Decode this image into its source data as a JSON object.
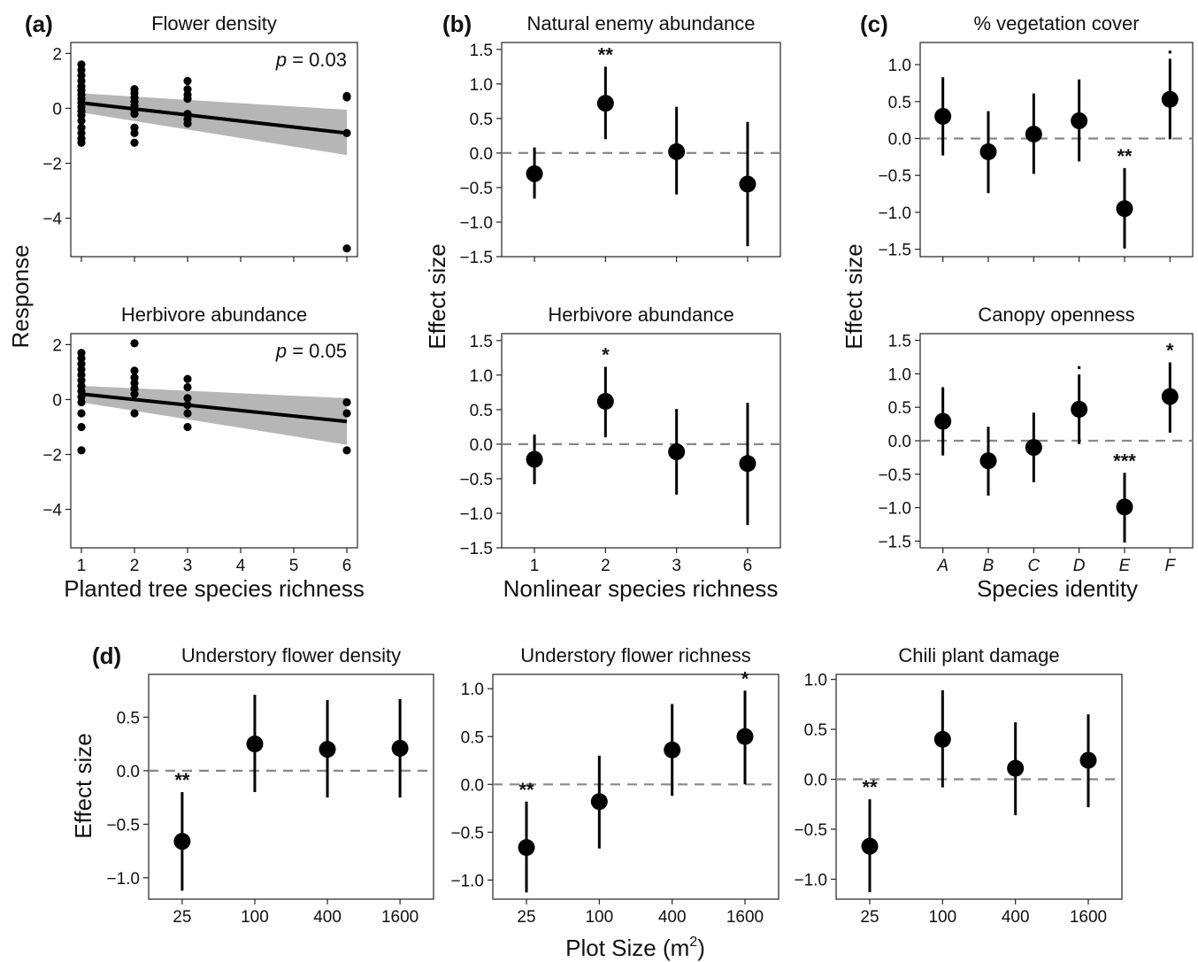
{
  "figure": {
    "shared_labels": {
      "a_ylabel": "Response",
      "a_xlabel": "Planted tree species richness",
      "b_ylabel": "Effect size",
      "b_xlabel": "Nonlinear species richness",
      "c_ylabel": "Effect size",
      "c_xlabel": "Species identity",
      "d_ylabel": "Effect size",
      "d_xlabel": "Plot Size (m",
      "d_xlabel_sup": "2",
      "d_xlabel_end": ")"
    },
    "panel_letters": {
      "a": "(a)",
      "b": "(b)",
      "c": "(c)",
      "d": "(d)"
    }
  },
  "chart_data": [
    {
      "id": "a1",
      "type": "scatter",
      "title": "Flower density",
      "annotation": "p = 0.03",
      "p_label": "p",
      "p_value": "= 0.03",
      "x_ticks": [
        1,
        2,
        3,
        4,
        5,
        6
      ],
      "y_ticks": [
        2,
        0,
        -2,
        -4
      ],
      "xlim": [
        0.8,
        6.2
      ],
      "ylim": [
        -5.4,
        2.4
      ],
      "points": [
        [
          1,
          1.6
        ],
        [
          1,
          1.4
        ],
        [
          1,
          1.2
        ],
        [
          1,
          1.0
        ],
        [
          1,
          0.8
        ],
        [
          1,
          0.65
        ],
        [
          1,
          0.5
        ],
        [
          1,
          0.35
        ],
        [
          1,
          0.2
        ],
        [
          1,
          0.05
        ],
        [
          1,
          -0.1
        ],
        [
          1,
          -0.25
        ],
        [
          1,
          -0.45
        ],
        [
          1,
          -0.7
        ],
        [
          1,
          -0.9
        ],
        [
          1,
          -1.1
        ],
        [
          1,
          -1.25
        ],
        [
          2,
          0.7
        ],
        [
          2,
          0.55
        ],
        [
          2,
          0.4
        ],
        [
          2,
          0.25
        ],
        [
          2,
          0.1
        ],
        [
          2,
          -0.05
        ],
        [
          2,
          -0.2
        ],
        [
          2,
          -0.7
        ],
        [
          2,
          -0.9
        ],
        [
          2,
          -1.25
        ],
        [
          3,
          1.0
        ],
        [
          3,
          0.7
        ],
        [
          3,
          0.5
        ],
        [
          3,
          0.35
        ],
        [
          3,
          -0.2
        ],
        [
          3,
          -0.4
        ],
        [
          3,
          -0.55
        ],
        [
          6,
          0.45
        ],
        [
          6,
          0.4
        ],
        [
          6,
          -0.9
        ],
        [
          6,
          -5.1
        ]
      ],
      "fit": {
        "x": [
          1,
          6
        ],
        "y": [
          0.2,
          -0.9
        ]
      },
      "band": {
        "x": [
          1,
          6
        ],
        "lower": [
          -0.15,
          -1.7
        ],
        "upper": [
          0.55,
          -0.05
        ]
      }
    },
    {
      "id": "a2",
      "type": "scatter",
      "title": "Herbivore abundance",
      "annotation": "p = 0.05",
      "p_label": "p",
      "p_value": "= 0.05",
      "x_ticks": [
        1,
        2,
        3,
        4,
        5,
        6
      ],
      "y_ticks": [
        2,
        0,
        -2,
        -4
      ],
      "xlim": [
        0.8,
        6.2
      ],
      "ylim": [
        -5.4,
        2.4
      ],
      "points": [
        [
          1,
          1.7
        ],
        [
          1,
          1.5
        ],
        [
          1,
          1.3
        ],
        [
          1,
          1.1
        ],
        [
          1,
          0.9
        ],
        [
          1,
          0.7
        ],
        [
          1,
          0.5
        ],
        [
          1,
          0.3
        ],
        [
          1,
          0.1
        ],
        [
          1,
          -0.1
        ],
        [
          1,
          -0.5
        ],
        [
          1,
          -1.0
        ],
        [
          1,
          -1.85
        ],
        [
          2,
          2.05
        ],
        [
          2,
          1.05
        ],
        [
          2,
          0.8
        ],
        [
          2,
          0.6
        ],
        [
          2,
          0.4
        ],
        [
          2,
          0.2
        ],
        [
          2,
          -0.5
        ],
        [
          3,
          0.75
        ],
        [
          3,
          0.45
        ],
        [
          3,
          0.05
        ],
        [
          3,
          -0.2
        ],
        [
          3,
          -0.5
        ],
        [
          3,
          -1.0
        ],
        [
          6,
          -0.1
        ],
        [
          6,
          -0.5
        ],
        [
          6,
          -1.85
        ]
      ],
      "fit": {
        "x": [
          1,
          6
        ],
        "y": [
          0.2,
          -0.8
        ]
      },
      "band": {
        "x": [
          1,
          6
        ],
        "lower": [
          -0.1,
          -1.65
        ],
        "upper": [
          0.5,
          0.05
        ]
      }
    },
    {
      "id": "b1",
      "type": "scatter",
      "title": "Natural enemy abundance",
      "categories": [
        "1",
        "2",
        "3",
        "6"
      ],
      "y_ticks": [
        1.5,
        1.0,
        0.5,
        0.0,
        -0.5,
        -1.0,
        -1.5
      ],
      "y_tick_labels": [
        "1.5",
        "1.0",
        "0.5",
        "0.0",
        "−0.5",
        "−1.0",
        "−1.5"
      ],
      "ylim": [
        -1.5,
        1.6
      ],
      "estimates": [
        -0.3,
        0.72,
        0.02,
        -0.45
      ],
      "ci_low": [
        -0.66,
        0.2,
        -0.6,
        -1.35
      ],
      "ci_high": [
        0.08,
        1.25,
        0.67,
        0.45
      ],
      "significance": [
        "",
        "**",
        "",
        ""
      ]
    },
    {
      "id": "b2",
      "type": "scatter",
      "title": "Herbivore abundance",
      "categories": [
        "1",
        "2",
        "3",
        "6"
      ],
      "y_ticks": [
        1.5,
        1.0,
        0.5,
        0.0,
        -0.5,
        -1.0,
        -1.5
      ],
      "y_tick_labels": [
        "1.5",
        "1.0",
        "0.5",
        "0.0",
        "−0.5",
        "−1.0",
        "−1.5"
      ],
      "ylim": [
        -1.5,
        1.6
      ],
      "estimates": [
        -0.22,
        0.62,
        -0.11,
        -0.28
      ],
      "ci_low": [
        -0.58,
        0.1,
        -0.73,
        -1.17
      ],
      "ci_high": [
        0.14,
        1.12,
        0.51,
        0.6
      ],
      "significance": [
        "",
        "*",
        "",
        ""
      ]
    },
    {
      "id": "c1",
      "type": "scatter",
      "title": "% vegetation cover",
      "categories": [
        "A",
        "B",
        "C",
        "D",
        "E",
        "F"
      ],
      "y_ticks": [
        1.0,
        0.5,
        0.0,
        -0.5,
        -1.0,
        -1.5
      ],
      "y_tick_labels": [
        "1.0",
        "0.5",
        "0.0",
        "−0.5",
        "−1.0",
        "−1.5"
      ],
      "ylim": [
        -1.6,
        1.3
      ],
      "estimates": [
        0.3,
        -0.18,
        0.06,
        0.24,
        -0.95,
        0.53
      ],
      "ci_low": [
        -0.23,
        -0.74,
        -0.48,
        -0.31,
        -1.49,
        -0.01
      ],
      "ci_high": [
        0.83,
        0.37,
        0.61,
        0.8,
        -0.4,
        1.08
      ],
      "significance": [
        "",
        "",
        "",
        "",
        "**",
        "."
      ]
    },
    {
      "id": "c2",
      "type": "scatter",
      "title": "Canopy openness",
      "categories": [
        "A",
        "B",
        "C",
        "D",
        "E",
        "F"
      ],
      "y_ticks": [
        1.5,
        1.0,
        0.5,
        0.0,
        -0.5,
        -1.0,
        -1.5
      ],
      "y_tick_labels": [
        "1.5",
        "1.0",
        "0.5",
        "0.0",
        "−0.5",
        "−1.0",
        "−1.5"
      ],
      "ylim": [
        -1.6,
        1.6
      ],
      "estimates": [
        0.29,
        -0.3,
        -0.1,
        0.47,
        -0.99,
        0.66
      ],
      "ci_low": [
        -0.22,
        -0.82,
        -0.62,
        -0.05,
        -1.52,
        0.12
      ],
      "ci_high": [
        0.8,
        0.21,
        0.42,
        0.99,
        -0.48,
        1.17
      ],
      "significance": [
        "",
        "",
        "",
        ".",
        "***",
        "*"
      ]
    },
    {
      "id": "d1",
      "type": "scatter",
      "title": "Understory flower density",
      "categories": [
        "25",
        "100",
        "400",
        "1600"
      ],
      "y_ticks": [
        0.5,
        0.0,
        -0.5,
        -1.0
      ],
      "y_tick_labels": [
        "0.5",
        "0.0",
        "−0.5",
        "−1.0"
      ],
      "ylim": [
        -1.2,
        0.9
      ],
      "estimates": [
        -0.66,
        0.25,
        0.2,
        0.21
      ],
      "ci_low": [
        -1.12,
        -0.2,
        -0.25,
        -0.25
      ],
      "ci_high": [
        -0.2,
        0.71,
        0.66,
        0.67
      ],
      "significance": [
        "**",
        "",
        "",
        ""
      ]
    },
    {
      "id": "d2",
      "type": "scatter",
      "title": "Understory flower richness",
      "categories": [
        "25",
        "100",
        "400",
        "1600"
      ],
      "y_ticks": [
        1.0,
        0.5,
        0.0,
        -0.5,
        -1.0
      ],
      "y_tick_labels": [
        "1.0",
        "0.5",
        "0.0",
        "−0.5",
        "−1.0"
      ],
      "ylim": [
        -1.2,
        1.15
      ],
      "estimates": [
        -0.66,
        -0.18,
        0.36,
        0.5
      ],
      "ci_low": [
        -1.13,
        -0.67,
        -0.12,
        0.0
      ],
      "ci_high": [
        -0.18,
        0.3,
        0.84,
        0.98
      ],
      "significance": [
        "**",
        "",
        "",
        "*"
      ]
    },
    {
      "id": "d3",
      "type": "scatter",
      "title": "Chili plant damage",
      "categories": [
        "25",
        "100",
        "400",
        "1600"
      ],
      "y_ticks": [
        1.0,
        0.5,
        0.0,
        -0.5,
        -1.0
      ],
      "y_tick_labels": [
        "1.0",
        "0.5",
        "0.0",
        "−0.5",
        "−1.0"
      ],
      "ylim": [
        -1.2,
        1.05
      ],
      "estimates": [
        -0.67,
        0.4,
        0.11,
        0.19
      ],
      "ci_low": [
        -1.13,
        -0.08,
        -0.36,
        -0.28
      ],
      "ci_high": [
        -0.2,
        0.89,
        0.57,
        0.65
      ],
      "significance": [
        "**",
        "",
        "",
        ""
      ]
    }
  ]
}
